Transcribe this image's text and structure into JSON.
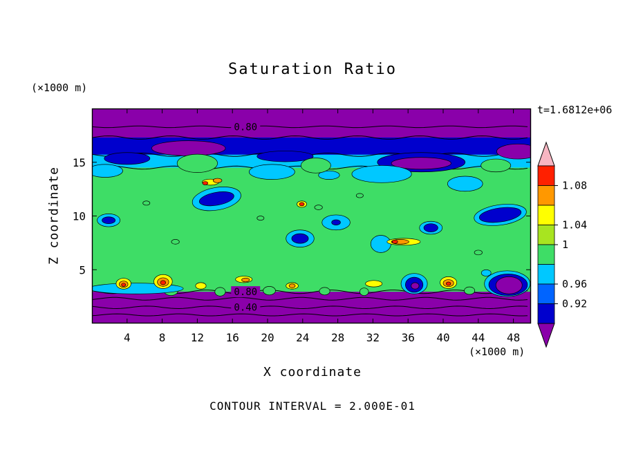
{
  "figure": {
    "title": "Saturation Ratio",
    "time_label": "t=1.6812e+06",
    "contour_note": "CONTOUR INTERVAL = 2.000E-01",
    "x_axis": {
      "label": "X coordinate",
      "unit": "(×1000 m)",
      "ticks": [
        4,
        8,
        12,
        16,
        20,
        24,
        28,
        32,
        36,
        40,
        44,
        48
      ]
    },
    "y_axis": {
      "label": "Z coordinate",
      "unit": "(×1000 m)",
      "ticks": [
        5,
        10,
        15
      ]
    }
  },
  "palette": {
    "purple": "#8a00aa",
    "navy": "#0000cd",
    "blue": "#0064ff",
    "cyan": "#00c8ff",
    "green": "#3edd66",
    "ygreen": "#a8e420",
    "yellow": "#ffff00",
    "orange": "#ff9800",
    "red": "#ff2000",
    "pink": "#f7b6c2"
  },
  "colorbar": {
    "segments": [
      "red",
      "orange",
      "yellow",
      "ygreen",
      "green",
      "cyan",
      "blue",
      "navy"
    ],
    "arrow_top": "pink",
    "arrow_bottom": "purple",
    "labels": [
      {
        "text": "1.08",
        "boundary": 1
      },
      {
        "text": "1.04",
        "boundary": 3
      },
      {
        "text": "1",
        "boundary": 4
      },
      {
        "text": "0.96",
        "boundary": 6
      },
      {
        "text": "0.92",
        "boundary": 7
      }
    ]
  },
  "chart_data": {
    "type": "heatmap",
    "title": "Saturation Ratio",
    "xlabel": "X coordinate (×1000 m)",
    "ylabel": "Z coordinate (×1000 m)",
    "time": "t=1.6812e+06",
    "x_range": [
      0,
      50
    ],
    "z_range": [
      0,
      20
    ],
    "contour_interval": "2.000E-01",
    "colorbar_values": [
      "1.08",
      "1.04",
      "1",
      "0.96",
      "0.92"
    ],
    "labeled_contours": [
      {
        "value": "0.80",
        "x": 17.5,
        "z": 18.3
      },
      {
        "value": "0.80",
        "x": 17.5,
        "z": 2.95
      },
      {
        "value": "0.40",
        "x": 17.5,
        "z": 1.5
      }
    ],
    "field": {
      "base": "green",
      "bands": [
        {
          "z0": 17.3,
          "z1": 20.0,
          "c": "purple"
        },
        {
          "z0": 15.7,
          "z1": 17.3,
          "c": "navy"
        },
        {
          "z0": 14.5,
          "z1": 15.7,
          "c": "cyan"
        },
        {
          "z0": 0.0,
          "z1": 2.95,
          "c": "purple"
        }
      ],
      "contour_lines": [
        {
          "z": 18.3,
          "amp": 1.2
        },
        {
          "z": 17.3,
          "amp": 2.4
        },
        {
          "z": 15.7,
          "amp": 2.4
        },
        {
          "z": 14.5,
          "amp": 2.2
        },
        {
          "z": 2.95,
          "amp": 2.6
        },
        {
          "z": 2.3,
          "amp": 2.0
        },
        {
          "z": 1.5,
          "amp": 1.8
        },
        {
          "z": 0.8,
          "amp": 1.5
        }
      ],
      "blobs": [
        {
          "x": 11,
          "z": 16.3,
          "rx": 4.2,
          "ry": 0.7,
          "c": "purple"
        },
        {
          "x": 48.5,
          "z": 16.0,
          "rx": 2.4,
          "ry": 0.7,
          "c": "purple"
        },
        {
          "x": 4,
          "z": 15.35,
          "rx": 2.6,
          "ry": 0.55,
          "c": "navy"
        },
        {
          "x": 22,
          "z": 15.55,
          "rx": 3.2,
          "ry": 0.5,
          "c": "navy"
        },
        {
          "x": 37.5,
          "z": 15.0,
          "rx": 5.0,
          "ry": 0.9,
          "c": "navy"
        },
        {
          "x": 37.5,
          "z": 14.9,
          "rx": 3.4,
          "ry": 0.55,
          "c": "purple"
        },
        {
          "x": 1.5,
          "z": 14.2,
          "rx": 2.0,
          "ry": 0.6,
          "c": "cyan"
        },
        {
          "x": 20.5,
          "z": 14.1,
          "rx": 2.6,
          "ry": 0.7,
          "c": "cyan"
        },
        {
          "x": 33,
          "z": 13.9,
          "rx": 3.4,
          "ry": 0.8,
          "c": "cyan"
        },
        {
          "x": 27,
          "z": 13.8,
          "rx": 1.2,
          "ry": 0.4,
          "c": "cyan"
        },
        {
          "x": 42.5,
          "z": 13.0,
          "rx": 2.0,
          "ry": 0.7,
          "c": "cyan"
        },
        {
          "x": 12,
          "z": 14.9,
          "rx": 2.3,
          "ry": 0.85,
          "c": "green"
        },
        {
          "x": 25.5,
          "z": 14.7,
          "rx": 1.7,
          "ry": 0.7,
          "c": "green"
        },
        {
          "x": 46,
          "z": 14.7,
          "rx": 1.7,
          "ry": 0.6,
          "c": "green"
        },
        {
          "x": 14.2,
          "z": 11.6,
          "rx": 2.8,
          "ry": 1.05,
          "c": "cyan",
          "rot": -10
        },
        {
          "x": 14.2,
          "z": 11.6,
          "rx": 2.0,
          "ry": 0.6,
          "c": "navy",
          "rot": -10
        },
        {
          "x": 13.5,
          "z": 13.15,
          "rx": 0.95,
          "ry": 0.28,
          "c": "yellow"
        },
        {
          "x": 14.3,
          "z": 13.3,
          "rx": 0.5,
          "ry": 0.2,
          "c": "orange"
        },
        {
          "x": 12.9,
          "z": 13.05,
          "rx": 0.3,
          "ry": 0.16,
          "c": "red"
        },
        {
          "x": 1.9,
          "z": 9.6,
          "rx": 1.3,
          "ry": 0.6,
          "c": "cyan"
        },
        {
          "x": 1.9,
          "z": 9.6,
          "rx": 0.75,
          "ry": 0.32,
          "c": "navy"
        },
        {
          "x": 23.7,
          "z": 7.9,
          "rx": 1.6,
          "ry": 0.8,
          "c": "cyan"
        },
        {
          "x": 23.7,
          "z": 7.9,
          "rx": 0.95,
          "ry": 0.45,
          "c": "navy"
        },
        {
          "x": 23.9,
          "z": 11.1,
          "rx": 0.55,
          "ry": 0.3,
          "c": "yellow"
        },
        {
          "x": 23.9,
          "z": 11.1,
          "rx": 0.28,
          "ry": 0.16,
          "c": "red"
        },
        {
          "x": 27.8,
          "z": 9.4,
          "rx": 1.6,
          "ry": 0.7,
          "c": "cyan"
        },
        {
          "x": 27.8,
          "z": 9.4,
          "rx": 0.5,
          "ry": 0.25,
          "c": "navy"
        },
        {
          "x": 32.9,
          "z": 7.4,
          "rx": 1.15,
          "ry": 0.8,
          "c": "cyan"
        },
        {
          "x": 35.5,
          "z": 7.6,
          "rx": 1.9,
          "ry": 0.32,
          "c": "yellow"
        },
        {
          "x": 35.1,
          "z": 7.6,
          "rx": 1.0,
          "ry": 0.22,
          "c": "orange"
        },
        {
          "x": 34.5,
          "z": 7.6,
          "rx": 0.32,
          "ry": 0.16,
          "c": "red"
        },
        {
          "x": 38.6,
          "z": 8.9,
          "rx": 1.3,
          "ry": 0.6,
          "c": "cyan"
        },
        {
          "x": 38.6,
          "z": 8.9,
          "rx": 0.8,
          "ry": 0.38,
          "c": "navy"
        },
        {
          "x": 46.5,
          "z": 10.1,
          "rx": 3.0,
          "ry": 0.95,
          "c": "cyan",
          "rot": -8
        },
        {
          "x": 46.5,
          "z": 10.1,
          "rx": 2.4,
          "ry": 0.65,
          "c": "navy",
          "rot": -8
        },
        {
          "x": 25.8,
          "z": 10.8,
          "rx": 0.45,
          "ry": 0.22,
          "c": "none"
        },
        {
          "x": 30.5,
          "z": 11.9,
          "rx": 0.4,
          "ry": 0.2,
          "c": "none"
        },
        {
          "x": 9.5,
          "z": 7.6,
          "rx": 0.45,
          "ry": 0.22,
          "c": "none"
        },
        {
          "x": 19.2,
          "z": 9.8,
          "rx": 0.4,
          "ry": 0.2,
          "c": "none"
        },
        {
          "x": 44,
          "z": 6.6,
          "rx": 0.45,
          "ry": 0.22,
          "c": "none"
        },
        {
          "x": 6.2,
          "z": 11.2,
          "rx": 0.4,
          "ry": 0.2,
          "c": "none"
        },
        {
          "x": 9,
          "z": 3.05,
          "rx": 0.8,
          "ry": 0.45,
          "c": "green"
        },
        {
          "x": 14.6,
          "z": 2.95,
          "rx": 0.6,
          "ry": 0.4,
          "c": "green"
        },
        {
          "x": 20.2,
          "z": 3.05,
          "rx": 0.7,
          "ry": 0.4,
          "c": "green"
        },
        {
          "x": 26.5,
          "z": 3.0,
          "rx": 0.6,
          "ry": 0.35,
          "c": "green"
        },
        {
          "x": 31,
          "z": 2.95,
          "rx": 0.5,
          "ry": 0.35,
          "c": "green"
        },
        {
          "x": 43,
          "z": 3.05,
          "rx": 0.6,
          "ry": 0.35,
          "c": "green"
        },
        {
          "x": 5,
          "z": 3.25,
          "rx": 5.4,
          "ry": 0.5,
          "c": "cyan"
        },
        {
          "x": 3.6,
          "z": 3.7,
          "rx": 0.85,
          "ry": 0.5,
          "c": "yellow"
        },
        {
          "x": 3.6,
          "z": 3.65,
          "rx": 0.5,
          "ry": 0.3,
          "c": "orange"
        },
        {
          "x": 3.6,
          "z": 3.6,
          "rx": 0.24,
          "ry": 0.15,
          "c": "red"
        },
        {
          "x": 8.1,
          "z": 3.9,
          "rx": 1.05,
          "ry": 0.65,
          "c": "yellow"
        },
        {
          "x": 8.1,
          "z": 3.85,
          "rx": 0.65,
          "ry": 0.4,
          "c": "orange"
        },
        {
          "x": 8.1,
          "z": 3.8,
          "rx": 0.3,
          "ry": 0.2,
          "c": "red"
        },
        {
          "x": 12.4,
          "z": 3.5,
          "rx": 0.6,
          "ry": 0.3,
          "c": "yellow"
        },
        {
          "x": 17.3,
          "z": 4.1,
          "rx": 0.95,
          "ry": 0.3,
          "c": "yellow"
        },
        {
          "x": 17.5,
          "z": 4.05,
          "rx": 0.45,
          "ry": 0.18,
          "c": "orange"
        },
        {
          "x": 22.8,
          "z": 3.5,
          "rx": 0.7,
          "ry": 0.3,
          "c": "yellow"
        },
        {
          "x": 22.8,
          "z": 3.5,
          "rx": 0.35,
          "ry": 0.18,
          "c": "orange"
        },
        {
          "x": 32.1,
          "z": 3.7,
          "rx": 0.95,
          "ry": 0.3,
          "c": "yellow"
        },
        {
          "x": 36.7,
          "z": 3.7,
          "rx": 1.5,
          "ry": 0.95,
          "c": "cyan"
        },
        {
          "x": 36.7,
          "z": 3.6,
          "rx": 1.0,
          "ry": 0.7,
          "c": "navy"
        },
        {
          "x": 36.8,
          "z": 3.5,
          "rx": 0.45,
          "ry": 0.3,
          "c": "purple"
        },
        {
          "x": 40.6,
          "z": 3.8,
          "rx": 0.95,
          "ry": 0.55,
          "c": "yellow"
        },
        {
          "x": 40.6,
          "z": 3.75,
          "rx": 0.6,
          "ry": 0.33,
          "c": "orange"
        },
        {
          "x": 40.6,
          "z": 3.7,
          "rx": 0.26,
          "ry": 0.16,
          "c": "red"
        },
        {
          "x": 47.3,
          "z": 3.7,
          "rx": 2.6,
          "ry": 1.2,
          "c": "cyan"
        },
        {
          "x": 47.4,
          "z": 3.6,
          "rx": 2.2,
          "ry": 1.0,
          "c": "navy"
        },
        {
          "x": 47.5,
          "z": 3.55,
          "rx": 1.5,
          "ry": 0.8,
          "c": "purple"
        },
        {
          "x": 44.9,
          "z": 4.7,
          "rx": 0.55,
          "ry": 0.3,
          "c": "cyan"
        }
      ]
    }
  }
}
